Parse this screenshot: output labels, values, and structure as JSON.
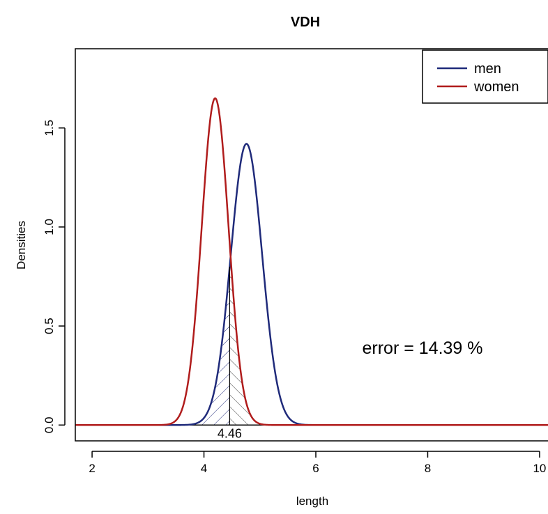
{
  "chart_data": {
    "type": "line",
    "title": "VDH",
    "xlabel": "length",
    "ylabel": "Densities",
    "xlim": [
      1.7,
      10.3
    ],
    "ylim": [
      -0.08,
      1.9
    ],
    "x_ticks": [
      2,
      4,
      6,
      8,
      10
    ],
    "x_tick_labels": [
      "2",
      "4",
      "6",
      "8",
      "10"
    ],
    "y_ticks": [
      0.0,
      0.5,
      1.0,
      1.5
    ],
    "y_tick_labels": [
      "0.0",
      "0.5",
      "1.0",
      "1.5"
    ],
    "grid": false,
    "legend_position": "top-right",
    "series": [
      {
        "name": "men",
        "color": "#1f2a7a",
        "mean": 4.76,
        "sd": 0.28,
        "peak": 1.42
      },
      {
        "name": "women",
        "color": "#b01c1c",
        "mean": 4.2,
        "sd": 0.24,
        "peak": 1.65
      }
    ],
    "intersection": {
      "x": 4.46,
      "label": "4.46"
    },
    "annotation": "error = 14.39 %"
  }
}
